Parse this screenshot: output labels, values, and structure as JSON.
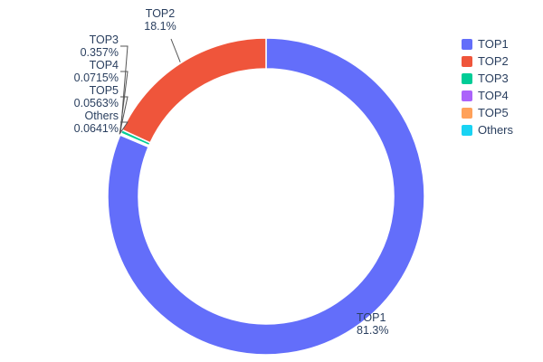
{
  "chart_data": {
    "type": "pie",
    "subtype": "donut",
    "hole": 0.8,
    "labels": [
      "TOP1",
      "TOP2",
      "TOP3",
      "TOP4",
      "TOP5",
      "Others"
    ],
    "values": [
      81.3,
      18.1,
      0.357,
      0.0715,
      0.0563,
      0.0641
    ],
    "percent_labels": [
      "81.3%",
      "18.1%",
      "0.357%",
      "0.0715%",
      "0.0563%",
      "0.0641%"
    ],
    "colors": [
      "#636efa",
      "#ef553b",
      "#00cc96",
      "#ab63fa",
      "#ffa15a",
      "#19d3f3"
    ],
    "legend_position": "right",
    "text_color": "#2a3f5f",
    "background": "#ffffff",
    "title": "",
    "xlabel": "",
    "ylabel": ""
  }
}
